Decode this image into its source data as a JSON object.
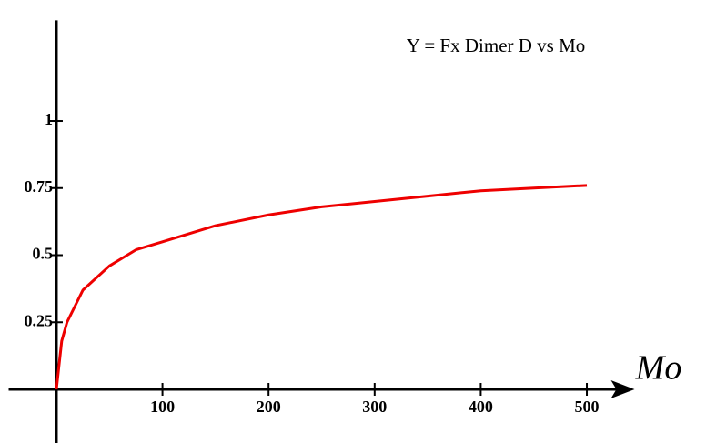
{
  "chart_data": {
    "type": "line",
    "title": "Y = Fx Dimer D vs Mo",
    "x_label": "Mo",
    "series": [
      {
        "name": "Fx Dimer D",
        "color": "#ee0000",
        "x": [
          0,
          5,
          10,
          25,
          50,
          75,
          100,
          150,
          200,
          250,
          300,
          350,
          400,
          450,
          500
        ],
        "values": [
          0,
          0.18,
          0.25,
          0.37,
          0.46,
          0.52,
          0.55,
          0.61,
          0.65,
          0.68,
          0.7,
          0.72,
          0.74,
          0.75,
          0.76
        ]
      }
    ],
    "xlim": [
      -45,
      545
    ],
    "ylim": [
      -0.2,
      1.375
    ],
    "xticks": [
      100,
      200,
      300,
      400,
      500
    ],
    "yticks": [
      0.25,
      0.5,
      0.75,
      1
    ]
  }
}
